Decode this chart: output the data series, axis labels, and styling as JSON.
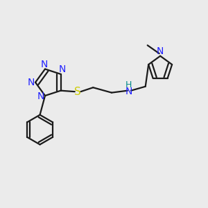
{
  "background_color": "#ebebeb",
  "bond_color": "#1a1a1a",
  "N_color": "#2020ff",
  "S_color": "#cccc00",
  "NH_color": "#008888",
  "figsize": [
    3.0,
    3.0
  ],
  "dpi": 100,
  "xlim": [
    0,
    10
  ],
  "ylim": [
    0,
    10
  ],
  "lw": 1.6,
  "fs": 10,
  "fs_small": 9
}
